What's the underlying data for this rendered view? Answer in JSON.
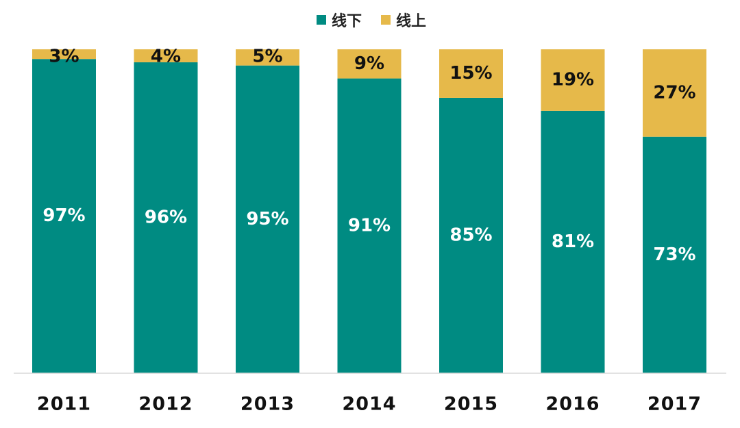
{
  "chart_data": {
    "type": "bar",
    "stacked": true,
    "percent": true,
    "categories": [
      "2011",
      "2012",
      "2013",
      "2014",
      "2015",
      "2016",
      "2017"
    ],
    "series": [
      {
        "name": "线下",
        "color": "#008b82",
        "values": [
          97,
          96,
          95,
          91,
          85,
          81,
          73
        ],
        "labels": [
          "97%",
          "96%",
          "95%",
          "91%",
          "85%",
          "81%",
          "73%"
        ]
      },
      {
        "name": "线上",
        "color": "#e6b94a",
        "values": [
          3,
          4,
          5,
          9,
          15,
          19,
          27
        ],
        "labels": [
          "3%",
          "4%",
          "5%",
          "9%",
          "15%",
          "19%",
          "27%"
        ]
      }
    ],
    "ylim": [
      0,
      100
    ],
    "legend_position": "top-center",
    "grid": false
  }
}
